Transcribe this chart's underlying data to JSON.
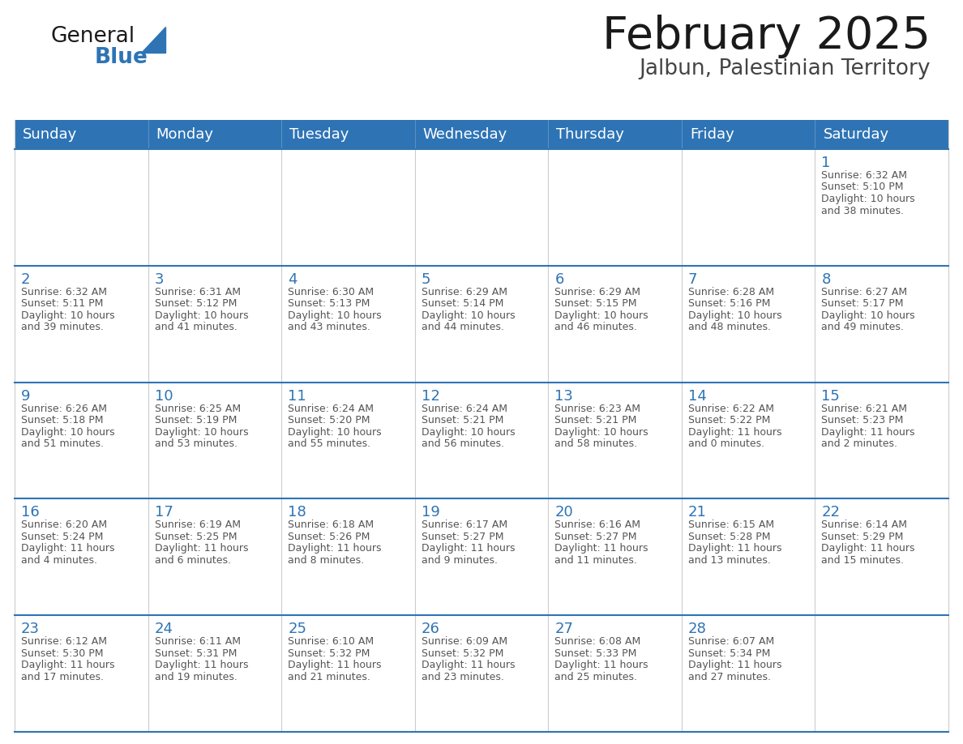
{
  "title": "February 2025",
  "subtitle": "Jalbun, Palestinian Territory",
  "header_bg": "#2E74B5",
  "header_text_color": "#FFFFFF",
  "header_days": [
    "Sunday",
    "Monday",
    "Tuesday",
    "Wednesday",
    "Thursday",
    "Friday",
    "Saturday"
  ],
  "cell_bg": "#FFFFFF",
  "alt_row_bg": "#F2F2F2",
  "cell_border_color": "#2E74B5",
  "cell_right_border_color": "#CCCCCC",
  "day_number_color": "#2E74B5",
  "info_text_color": "#555555",
  "title_color": "#1a1a1a",
  "subtitle_color": "#444444",
  "logo_general_color": "#1a1a1a",
  "logo_blue_color": "#2E74B5",
  "weeks": [
    [
      {
        "day": "",
        "info": ""
      },
      {
        "day": "",
        "info": ""
      },
      {
        "day": "",
        "info": ""
      },
      {
        "day": "",
        "info": ""
      },
      {
        "day": "",
        "info": ""
      },
      {
        "day": "",
        "info": ""
      },
      {
        "day": "1",
        "info": "Sunrise: 6:32 AM\nSunset: 5:10 PM\nDaylight: 10 hours\nand 38 minutes."
      }
    ],
    [
      {
        "day": "2",
        "info": "Sunrise: 6:32 AM\nSunset: 5:11 PM\nDaylight: 10 hours\nand 39 minutes."
      },
      {
        "day": "3",
        "info": "Sunrise: 6:31 AM\nSunset: 5:12 PM\nDaylight: 10 hours\nand 41 minutes."
      },
      {
        "day": "4",
        "info": "Sunrise: 6:30 AM\nSunset: 5:13 PM\nDaylight: 10 hours\nand 43 minutes."
      },
      {
        "day": "5",
        "info": "Sunrise: 6:29 AM\nSunset: 5:14 PM\nDaylight: 10 hours\nand 44 minutes."
      },
      {
        "day": "6",
        "info": "Sunrise: 6:29 AM\nSunset: 5:15 PM\nDaylight: 10 hours\nand 46 minutes."
      },
      {
        "day": "7",
        "info": "Sunrise: 6:28 AM\nSunset: 5:16 PM\nDaylight: 10 hours\nand 48 minutes."
      },
      {
        "day": "8",
        "info": "Sunrise: 6:27 AM\nSunset: 5:17 PM\nDaylight: 10 hours\nand 49 minutes."
      }
    ],
    [
      {
        "day": "9",
        "info": "Sunrise: 6:26 AM\nSunset: 5:18 PM\nDaylight: 10 hours\nand 51 minutes."
      },
      {
        "day": "10",
        "info": "Sunrise: 6:25 AM\nSunset: 5:19 PM\nDaylight: 10 hours\nand 53 minutes."
      },
      {
        "day": "11",
        "info": "Sunrise: 6:24 AM\nSunset: 5:20 PM\nDaylight: 10 hours\nand 55 minutes."
      },
      {
        "day": "12",
        "info": "Sunrise: 6:24 AM\nSunset: 5:21 PM\nDaylight: 10 hours\nand 56 minutes."
      },
      {
        "day": "13",
        "info": "Sunrise: 6:23 AM\nSunset: 5:21 PM\nDaylight: 10 hours\nand 58 minutes."
      },
      {
        "day": "14",
        "info": "Sunrise: 6:22 AM\nSunset: 5:22 PM\nDaylight: 11 hours\nand 0 minutes."
      },
      {
        "day": "15",
        "info": "Sunrise: 6:21 AM\nSunset: 5:23 PM\nDaylight: 11 hours\nand 2 minutes."
      }
    ],
    [
      {
        "day": "16",
        "info": "Sunrise: 6:20 AM\nSunset: 5:24 PM\nDaylight: 11 hours\nand 4 minutes."
      },
      {
        "day": "17",
        "info": "Sunrise: 6:19 AM\nSunset: 5:25 PM\nDaylight: 11 hours\nand 6 minutes."
      },
      {
        "day": "18",
        "info": "Sunrise: 6:18 AM\nSunset: 5:26 PM\nDaylight: 11 hours\nand 8 minutes."
      },
      {
        "day": "19",
        "info": "Sunrise: 6:17 AM\nSunset: 5:27 PM\nDaylight: 11 hours\nand 9 minutes."
      },
      {
        "day": "20",
        "info": "Sunrise: 6:16 AM\nSunset: 5:27 PM\nDaylight: 11 hours\nand 11 minutes."
      },
      {
        "day": "21",
        "info": "Sunrise: 6:15 AM\nSunset: 5:28 PM\nDaylight: 11 hours\nand 13 minutes."
      },
      {
        "day": "22",
        "info": "Sunrise: 6:14 AM\nSunset: 5:29 PM\nDaylight: 11 hours\nand 15 minutes."
      }
    ],
    [
      {
        "day": "23",
        "info": "Sunrise: 6:12 AM\nSunset: 5:30 PM\nDaylight: 11 hours\nand 17 minutes."
      },
      {
        "day": "24",
        "info": "Sunrise: 6:11 AM\nSunset: 5:31 PM\nDaylight: 11 hours\nand 19 minutes."
      },
      {
        "day": "25",
        "info": "Sunrise: 6:10 AM\nSunset: 5:32 PM\nDaylight: 11 hours\nand 21 minutes."
      },
      {
        "day": "26",
        "info": "Sunrise: 6:09 AM\nSunset: 5:32 PM\nDaylight: 11 hours\nand 23 minutes."
      },
      {
        "day": "27",
        "info": "Sunrise: 6:08 AM\nSunset: 5:33 PM\nDaylight: 11 hours\nand 25 minutes."
      },
      {
        "day": "28",
        "info": "Sunrise: 6:07 AM\nSunset: 5:34 PM\nDaylight: 11 hours\nand 27 minutes."
      },
      {
        "day": "",
        "info": ""
      }
    ]
  ],
  "fig_width": 11.88,
  "fig_height": 9.18,
  "dpi": 100
}
